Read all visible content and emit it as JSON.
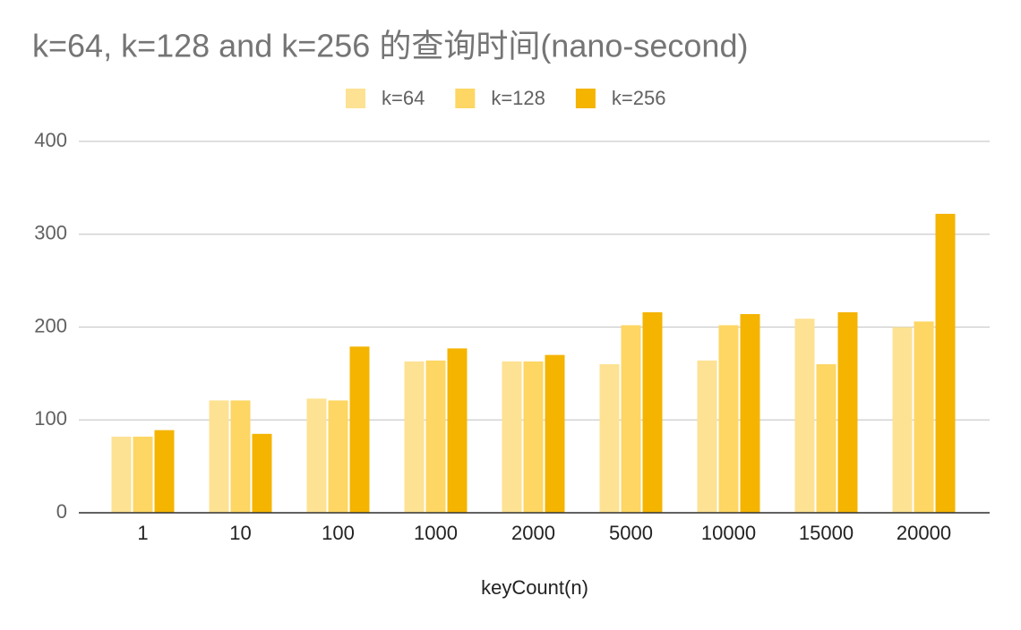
{
  "chart_data": {
    "type": "bar",
    "title": "k=64, k=128 and k=256 的查询时间(nano-second)",
    "x_label": "keyCount(n)",
    "categories": [
      "1",
      "10",
      "100",
      "1000",
      "2000",
      "5000",
      "10000",
      "15000",
      "20000"
    ],
    "series": [
      {
        "name": "k=64",
        "color": "#fde293",
        "values": [
          82,
          121,
          123,
          163,
          163,
          160,
          164,
          209,
          200
        ]
      },
      {
        "name": "k=128",
        "color": "#fdd663",
        "values": [
          82,
          121,
          121,
          164,
          163,
          202,
          202,
          160,
          206
        ]
      },
      {
        "name": "k=256",
        "color": "#f4b400",
        "values": [
          89,
          85,
          179,
          177,
          170,
          216,
          214,
          216,
          322
        ]
      }
    ],
    "ylim": [
      0,
      400
    ],
    "yticks": [
      0,
      100,
      200,
      300,
      400
    ],
    "grid": true,
    "legend": "top"
  }
}
